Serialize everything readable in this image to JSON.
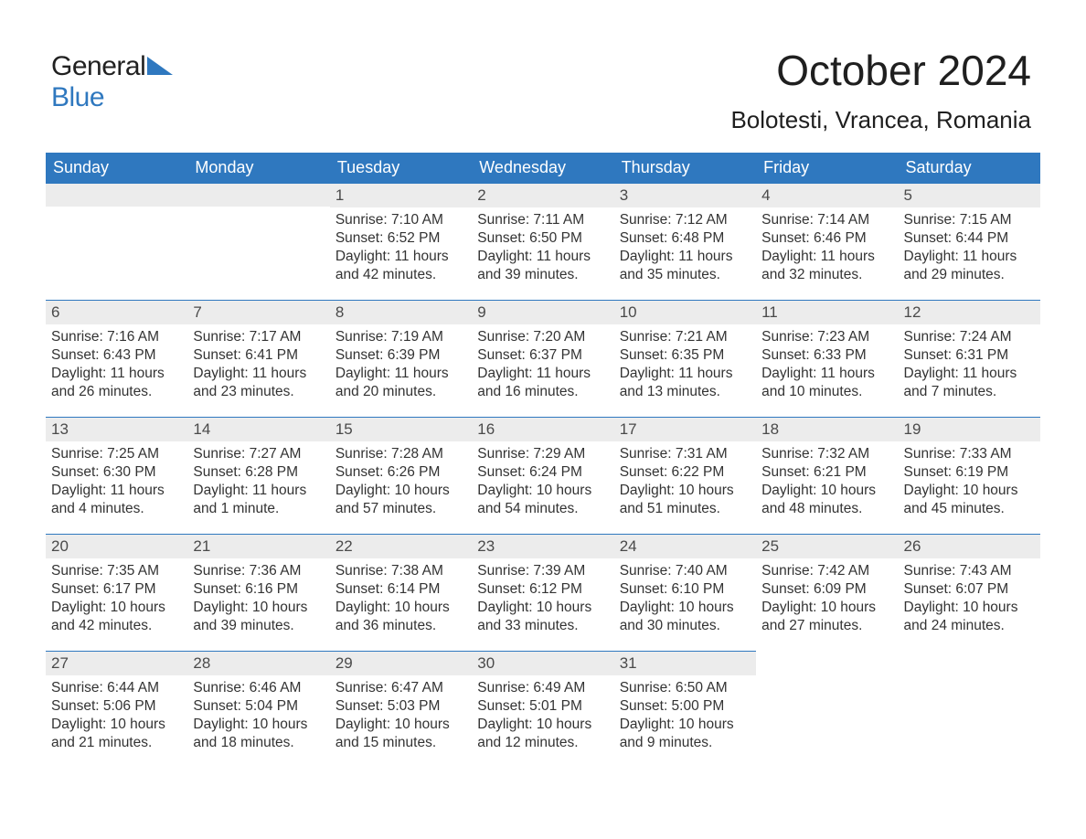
{
  "logo": {
    "text_top": "General",
    "text_bottom": "Blue",
    "top_color": "#212121",
    "bottom_color": "#2f78bf",
    "triangle_color": "#2f78bf"
  },
  "header": {
    "month_title": "October 2024",
    "location": "Bolotesti, Vrancea, Romania"
  },
  "colors": {
    "header_bg": "#2f78bf",
    "header_text": "#ffffff",
    "daynum_bg": "#ececec",
    "row_border": "#2f78bf",
    "body_text": "#333333",
    "page_bg": "#ffffff"
  },
  "fonts": {
    "title_size_pt": 34,
    "location_size_pt": 20,
    "header_size_pt": 14,
    "daynum_size_pt": 13,
    "body_size_pt": 12
  },
  "weekdays": [
    "Sunday",
    "Monday",
    "Tuesday",
    "Wednesday",
    "Thursday",
    "Friday",
    "Saturday"
  ],
  "weeks": [
    [
      null,
      null,
      {
        "day": "1",
        "sunrise": "Sunrise: 7:10 AM",
        "sunset": "Sunset: 6:52 PM",
        "dl1": "Daylight: 11 hours",
        "dl2": "and 42 minutes."
      },
      {
        "day": "2",
        "sunrise": "Sunrise: 7:11 AM",
        "sunset": "Sunset: 6:50 PM",
        "dl1": "Daylight: 11 hours",
        "dl2": "and 39 minutes."
      },
      {
        "day": "3",
        "sunrise": "Sunrise: 7:12 AM",
        "sunset": "Sunset: 6:48 PM",
        "dl1": "Daylight: 11 hours",
        "dl2": "and 35 minutes."
      },
      {
        "day": "4",
        "sunrise": "Sunrise: 7:14 AM",
        "sunset": "Sunset: 6:46 PM",
        "dl1": "Daylight: 11 hours",
        "dl2": "and 32 minutes."
      },
      {
        "day": "5",
        "sunrise": "Sunrise: 7:15 AM",
        "sunset": "Sunset: 6:44 PM",
        "dl1": "Daylight: 11 hours",
        "dl2": "and 29 minutes."
      }
    ],
    [
      {
        "day": "6",
        "sunrise": "Sunrise: 7:16 AM",
        "sunset": "Sunset: 6:43 PM",
        "dl1": "Daylight: 11 hours",
        "dl2": "and 26 minutes."
      },
      {
        "day": "7",
        "sunrise": "Sunrise: 7:17 AM",
        "sunset": "Sunset: 6:41 PM",
        "dl1": "Daylight: 11 hours",
        "dl2": "and 23 minutes."
      },
      {
        "day": "8",
        "sunrise": "Sunrise: 7:19 AM",
        "sunset": "Sunset: 6:39 PM",
        "dl1": "Daylight: 11 hours",
        "dl2": "and 20 minutes."
      },
      {
        "day": "9",
        "sunrise": "Sunrise: 7:20 AM",
        "sunset": "Sunset: 6:37 PM",
        "dl1": "Daylight: 11 hours",
        "dl2": "and 16 minutes."
      },
      {
        "day": "10",
        "sunrise": "Sunrise: 7:21 AM",
        "sunset": "Sunset: 6:35 PM",
        "dl1": "Daylight: 11 hours",
        "dl2": "and 13 minutes."
      },
      {
        "day": "11",
        "sunrise": "Sunrise: 7:23 AM",
        "sunset": "Sunset: 6:33 PM",
        "dl1": "Daylight: 11 hours",
        "dl2": "and 10 minutes."
      },
      {
        "day": "12",
        "sunrise": "Sunrise: 7:24 AM",
        "sunset": "Sunset: 6:31 PM",
        "dl1": "Daylight: 11 hours",
        "dl2": "and 7 minutes."
      }
    ],
    [
      {
        "day": "13",
        "sunrise": "Sunrise: 7:25 AM",
        "sunset": "Sunset: 6:30 PM",
        "dl1": "Daylight: 11 hours",
        "dl2": "and 4 minutes."
      },
      {
        "day": "14",
        "sunrise": "Sunrise: 7:27 AM",
        "sunset": "Sunset: 6:28 PM",
        "dl1": "Daylight: 11 hours",
        "dl2": "and 1 minute."
      },
      {
        "day": "15",
        "sunrise": "Sunrise: 7:28 AM",
        "sunset": "Sunset: 6:26 PM",
        "dl1": "Daylight: 10 hours",
        "dl2": "and 57 minutes."
      },
      {
        "day": "16",
        "sunrise": "Sunrise: 7:29 AM",
        "sunset": "Sunset: 6:24 PM",
        "dl1": "Daylight: 10 hours",
        "dl2": "and 54 minutes."
      },
      {
        "day": "17",
        "sunrise": "Sunrise: 7:31 AM",
        "sunset": "Sunset: 6:22 PM",
        "dl1": "Daylight: 10 hours",
        "dl2": "and 51 minutes."
      },
      {
        "day": "18",
        "sunrise": "Sunrise: 7:32 AM",
        "sunset": "Sunset: 6:21 PM",
        "dl1": "Daylight: 10 hours",
        "dl2": "and 48 minutes."
      },
      {
        "day": "19",
        "sunrise": "Sunrise: 7:33 AM",
        "sunset": "Sunset: 6:19 PM",
        "dl1": "Daylight: 10 hours",
        "dl2": "and 45 minutes."
      }
    ],
    [
      {
        "day": "20",
        "sunrise": "Sunrise: 7:35 AM",
        "sunset": "Sunset: 6:17 PM",
        "dl1": "Daylight: 10 hours",
        "dl2": "and 42 minutes."
      },
      {
        "day": "21",
        "sunrise": "Sunrise: 7:36 AM",
        "sunset": "Sunset: 6:16 PM",
        "dl1": "Daylight: 10 hours",
        "dl2": "and 39 minutes."
      },
      {
        "day": "22",
        "sunrise": "Sunrise: 7:38 AM",
        "sunset": "Sunset: 6:14 PM",
        "dl1": "Daylight: 10 hours",
        "dl2": "and 36 minutes."
      },
      {
        "day": "23",
        "sunrise": "Sunrise: 7:39 AM",
        "sunset": "Sunset: 6:12 PM",
        "dl1": "Daylight: 10 hours",
        "dl2": "and 33 minutes."
      },
      {
        "day": "24",
        "sunrise": "Sunrise: 7:40 AM",
        "sunset": "Sunset: 6:10 PM",
        "dl1": "Daylight: 10 hours",
        "dl2": "and 30 minutes."
      },
      {
        "day": "25",
        "sunrise": "Sunrise: 7:42 AM",
        "sunset": "Sunset: 6:09 PM",
        "dl1": "Daylight: 10 hours",
        "dl2": "and 27 minutes."
      },
      {
        "day": "26",
        "sunrise": "Sunrise: 7:43 AM",
        "sunset": "Sunset: 6:07 PM",
        "dl1": "Daylight: 10 hours",
        "dl2": "and 24 minutes."
      }
    ],
    [
      {
        "day": "27",
        "sunrise": "Sunrise: 6:44 AM",
        "sunset": "Sunset: 5:06 PM",
        "dl1": "Daylight: 10 hours",
        "dl2": "and 21 minutes."
      },
      {
        "day": "28",
        "sunrise": "Sunrise: 6:46 AM",
        "sunset": "Sunset: 5:04 PM",
        "dl1": "Daylight: 10 hours",
        "dl2": "and 18 minutes."
      },
      {
        "day": "29",
        "sunrise": "Sunrise: 6:47 AM",
        "sunset": "Sunset: 5:03 PM",
        "dl1": "Daylight: 10 hours",
        "dl2": "and 15 minutes."
      },
      {
        "day": "30",
        "sunrise": "Sunrise: 6:49 AM",
        "sunset": "Sunset: 5:01 PM",
        "dl1": "Daylight: 10 hours",
        "dl2": "and 12 minutes."
      },
      {
        "day": "31",
        "sunrise": "Sunrise: 6:50 AM",
        "sunset": "Sunset: 5:00 PM",
        "dl1": "Daylight: 10 hours",
        "dl2": "and 9 minutes."
      },
      null,
      null
    ]
  ]
}
